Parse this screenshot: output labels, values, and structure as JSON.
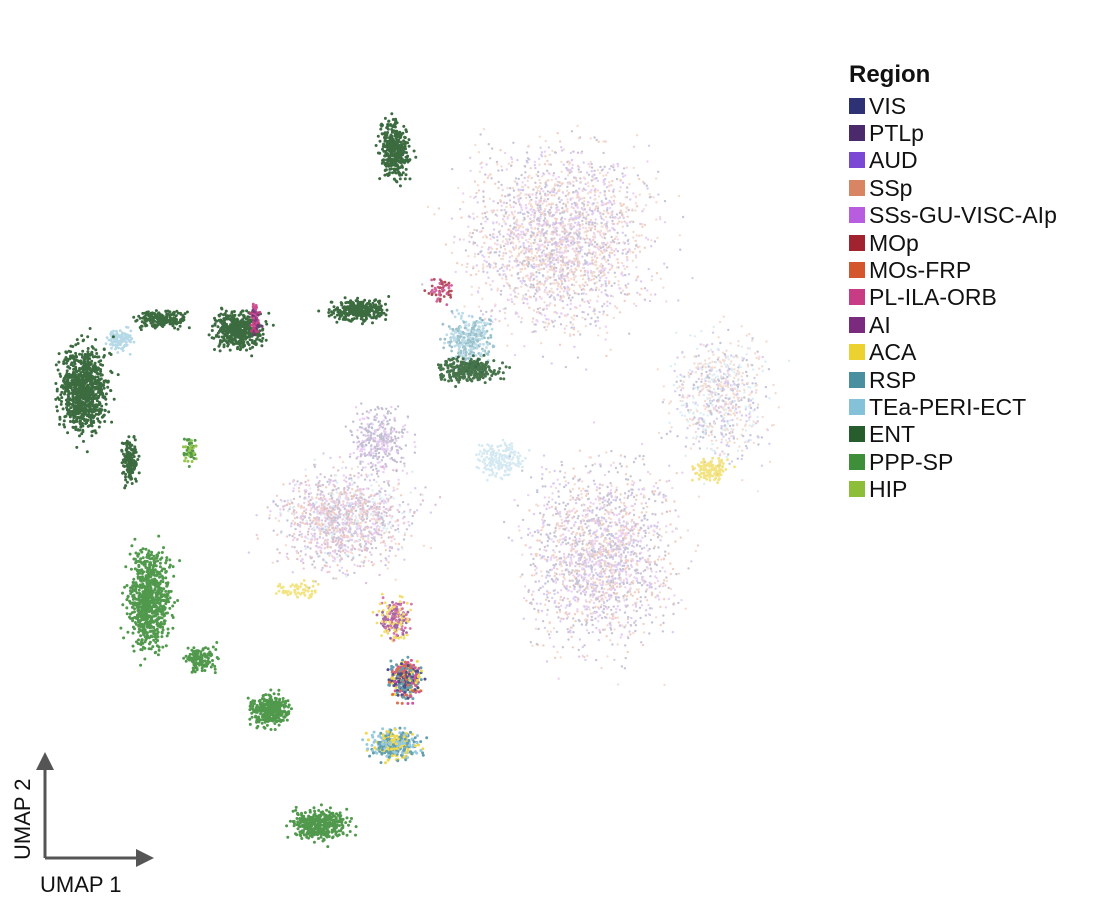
{
  "chart_data": {
    "type": "scatter",
    "title": "",
    "xlabel": "UMAP 1",
    "ylabel": "UMAP 2",
    "legend": {
      "title": "Region",
      "placement": "top-right",
      "entries": [
        {
          "name": "VIS",
          "color": "#2e3275"
        },
        {
          "name": "PTLp",
          "color": "#4a2a6a"
        },
        {
          "name": "AUD",
          "color": "#7b48d6"
        },
        {
          "name": "SSp",
          "color": "#d98463"
        },
        {
          "name": "SSs-GU-VISC-AIp",
          "color": "#b85ce0"
        },
        {
          "name": "MOp",
          "color": "#a0232f"
        },
        {
          "name": "MOs-FRP",
          "color": "#d4562c"
        },
        {
          "name": "PL-ILA-ORB",
          "color": "#c83c86"
        },
        {
          "name": "AI",
          "color": "#7a2b7e"
        },
        {
          "name": "ACA",
          "color": "#ecd230"
        },
        {
          "name": "RSP",
          "color": "#4a8fa0"
        },
        {
          "name": "TEa-PERI-ECT",
          "color": "#86c1da"
        },
        {
          "name": "ENT",
          "color": "#275c2c"
        },
        {
          "name": "PPP-SP",
          "color": "#3f8e3a"
        },
        {
          "name": "HIP",
          "color": "#8cbe3a"
        }
      ]
    },
    "grid": false
  }
}
